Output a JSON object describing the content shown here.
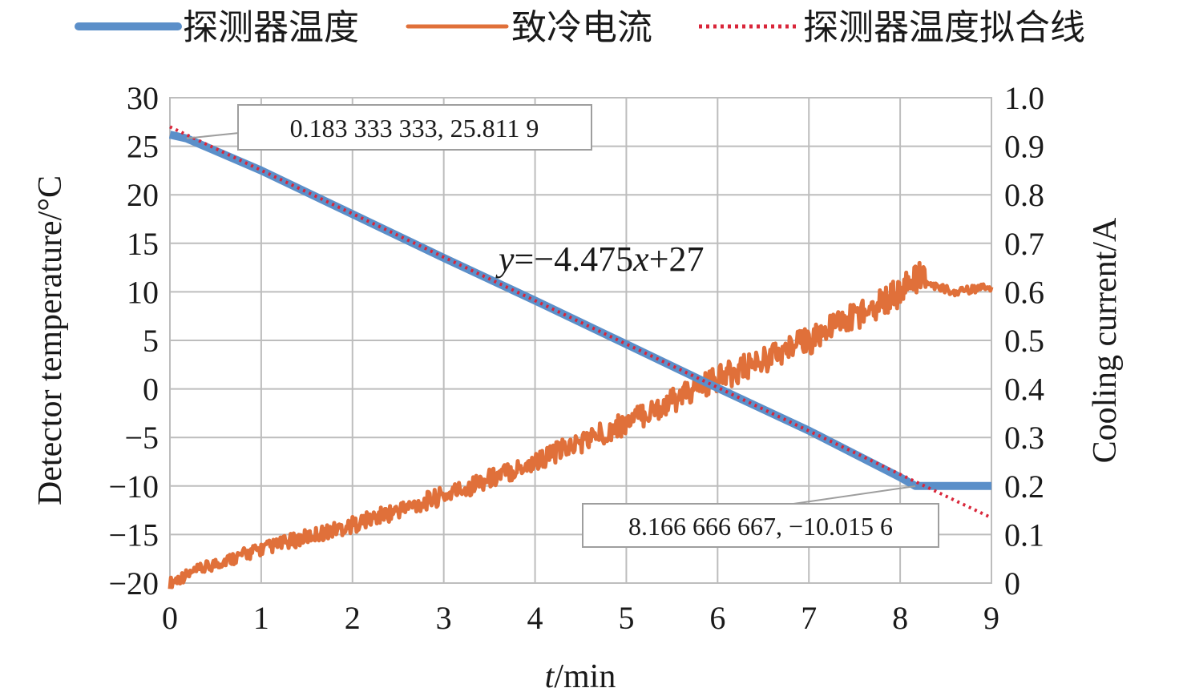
{
  "chart_data": {
    "type": "line",
    "x_label_var": "t",
    "x_label_unit": "/min",
    "y_left_label": "Detector temperature/°C",
    "y_right_label": "Cooling current/A",
    "xlim": [
      0,
      9
    ],
    "y_left_lim": [
      -20,
      30
    ],
    "y_right_lim": [
      0,
      1.0
    ],
    "x_ticks": [
      "0",
      "1",
      "2",
      "3",
      "4",
      "5",
      "6",
      "7",
      "8",
      "9"
    ],
    "y_left_ticks": [
      "30",
      "25",
      "20",
      "15",
      "10",
      "5",
      "0",
      "−5",
      "−10",
      "−15",
      "−20"
    ],
    "y_right_ticks": [
      "1.0",
      "0.9",
      "0.8",
      "0.7",
      "0.6",
      "0.5",
      "0.4",
      "0.3",
      "0.2",
      "0.1",
      "0"
    ],
    "grid": true,
    "legend_position": "top",
    "series": [
      {
        "name": "探测器温度",
        "axis": "left",
        "color": "#5b8fc9",
        "x": [
          0,
          0.183333333,
          1,
          2,
          3,
          4,
          5,
          6,
          7,
          8,
          8.166666667,
          8.5,
          9
        ],
        "y": [
          26.2,
          25.8,
          22.5,
          18.0,
          13.5,
          9.1,
          4.6,
          0.1,
          -4.3,
          -9.1,
          -10.0,
          -10.0,
          -10.0
        ]
      },
      {
        "name": "致冷电流",
        "axis": "right",
        "color": "#e0703a",
        "x": [
          0,
          0.1,
          0.5,
          1,
          2,
          3,
          4,
          5,
          6,
          7,
          7.5,
          8,
          8.2,
          8.4,
          8.6,
          9
        ],
        "y": [
          0.0,
          0.01,
          0.04,
          0.07,
          0.12,
          0.18,
          0.25,
          0.33,
          0.42,
          0.5,
          0.55,
          0.6,
          0.63,
          0.61,
          0.6,
          0.61
        ]
      },
      {
        "name": "探测器温度拟合线",
        "axis": "left",
        "color": "#d9263a",
        "dash": "dotted",
        "x": [
          0,
          9
        ],
        "y": [
          27,
          -13.275
        ]
      }
    ],
    "annotations": [
      {
        "text": "0.183 333 333, 25.811 9",
        "x": 0.183333333,
        "y": 25.8119
      },
      {
        "text": "8.166 666 667, −10.015 6",
        "x": 8.166666667,
        "y": -10.0156
      }
    ],
    "equation": {
      "y": "y",
      "body": "=−4.475",
      "x": "x",
      "tail": "+27"
    }
  }
}
